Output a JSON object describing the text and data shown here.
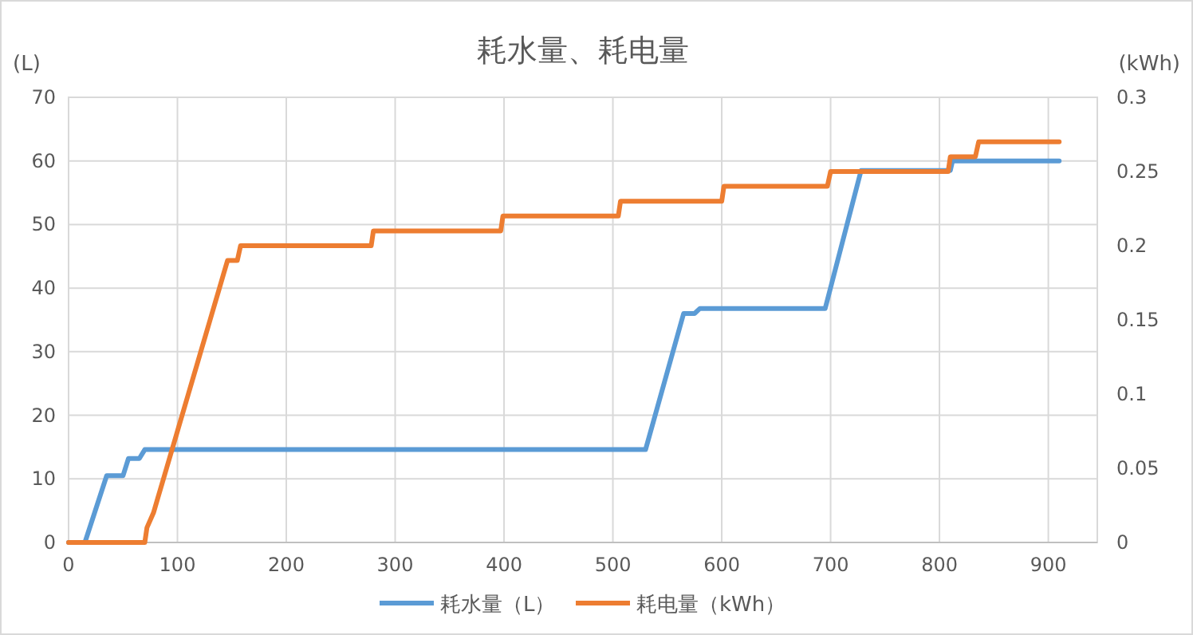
{
  "chart_data": {
    "type": "line",
    "title": "耗水量、耗电量",
    "ylabel": "(L)",
    "y2label": "(kWh)",
    "xlim": [
      0,
      945
    ],
    "xticks": [
      0,
      100,
      200,
      300,
      400,
      500,
      600,
      700,
      800,
      900
    ],
    "ylim": [
      0,
      70
    ],
    "yticks": [
      0,
      10,
      20,
      30,
      40,
      50,
      60,
      70
    ],
    "y2lim": [
      0,
      0.3
    ],
    "y2ticks": [
      0,
      0.05,
      0.1,
      0.15,
      0.2,
      0.25,
      0.3
    ],
    "grid": true,
    "legend": "bottom",
    "series": [
      {
        "name": "耗水量（L）",
        "color": "#5b9bd5",
        "axis": "y",
        "x": [
          0,
          15,
          35,
          50,
          55,
          65,
          70,
          530,
          565,
          575,
          580,
          695,
          728,
          810,
          812,
          910
        ],
        "values": [
          0,
          0,
          10.5,
          10.5,
          13.2,
          13.2,
          14.6,
          14.6,
          36,
          36,
          36.8,
          36.8,
          58.5,
          58.5,
          60,
          60
        ]
      },
      {
        "name": "耗电量（kWh）",
        "color": "#ed7d31",
        "axis": "y2",
        "x": [
          0,
          70,
          72,
          78,
          82,
          86,
          90,
          94,
          98,
          102,
          106,
          110,
          114,
          118,
          122,
          126,
          130,
          134,
          138,
          142,
          146,
          155,
          158,
          278,
          280,
          397,
          399,
          505,
          507,
          600,
          602,
          697,
          700,
          808,
          810,
          833,
          836,
          910
        ],
        "values": [
          0,
          0,
          0.01,
          0.02,
          0.03,
          0.04,
          0.05,
          0.06,
          0.07,
          0.08,
          0.09,
          0.1,
          0.11,
          0.12,
          0.13,
          0.14,
          0.15,
          0.16,
          0.17,
          0.18,
          0.19,
          0.19,
          0.2,
          0.2,
          0.21,
          0.21,
          0.22,
          0.22,
          0.23,
          0.23,
          0.24,
          0.24,
          0.25,
          0.25,
          0.26,
          0.26,
          0.27,
          0.27
        ]
      }
    ]
  }
}
